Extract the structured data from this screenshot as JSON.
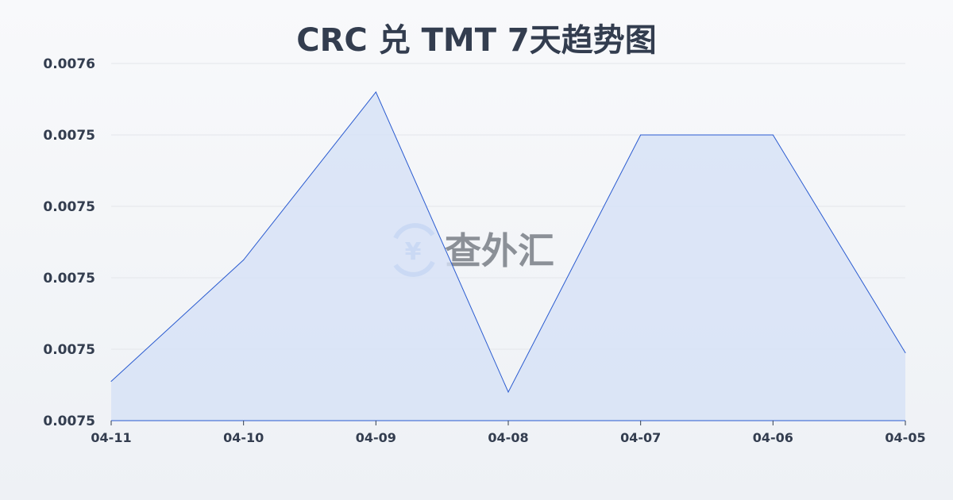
{
  "chart_data": {
    "type": "area",
    "title": "CRC 兑 TMT 7天趋势图",
    "xlabel": "",
    "ylabel": "",
    "categories": [
      "04-11",
      "04-10",
      "04-09",
      "04-08",
      "04-07",
      "04-06",
      "04-05"
    ],
    "values": [
      0.007461,
      0.007495,
      0.007542,
      0.007458,
      0.00753,
      0.00753,
      0.007469
    ],
    "ylim": [
      0.00745,
      0.00755
    ],
    "yticks": [
      0.00745,
      0.00747,
      0.00749,
      0.00751,
      0.00753,
      0.00755
    ],
    "ytick_labels": [
      "0.0075",
      "0.0075",
      "0.0075",
      "0.0075",
      "0.0075",
      "0.0076"
    ],
    "grid": true,
    "line_color": "#2a5bd0",
    "fill_color": "#d6e1f6"
  },
  "watermark": {
    "text": "查外汇",
    "icon": "yen-exchange-icon",
    "color": "#8fb0e8"
  }
}
